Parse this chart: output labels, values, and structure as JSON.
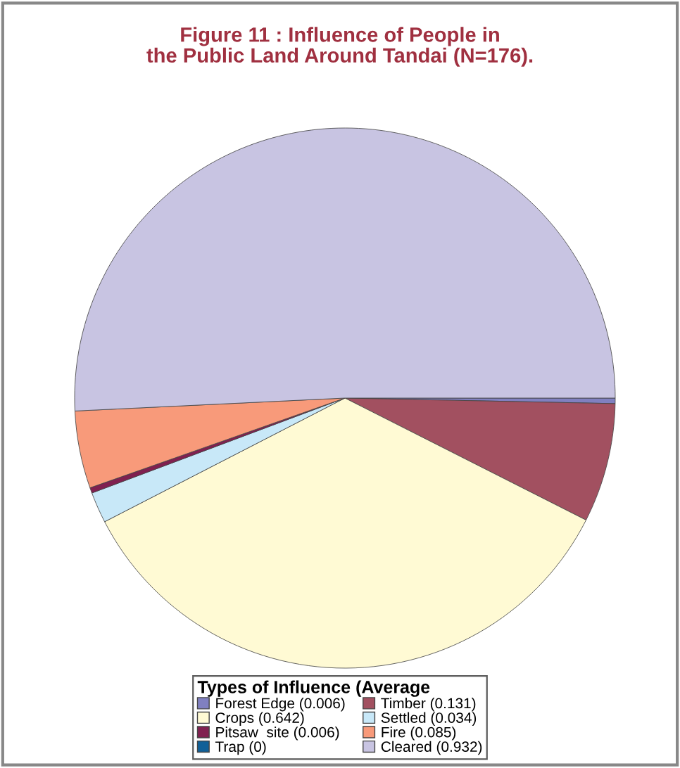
{
  "chart_data": {
    "type": "pie",
    "title": "Figure 11 : Influence of People in\nthe Public Land Around Tandai (N=176).",
    "legend_title": "Types of Influence (Average",
    "categories": [
      "Forest Edge (0.006)",
      "Timber (0.131)",
      "Crops (0.642)",
      "Settled (0.034)",
      "Pitsaw  site (0.006)",
      "Fire (0.085)",
      "Trap (0)",
      "Cleared (0.932)"
    ],
    "values": [
      0.006,
      0.131,
      0.642,
      0.034,
      0.006,
      0.085,
      0,
      0.932
    ],
    "colors": [
      "#8080c0",
      "#a25060",
      "#fffad4",
      "#c8e8f8",
      "#802050",
      "#f89a7a",
      "#106098",
      "#c8c4e2"
    ],
    "legend": "bottom"
  }
}
